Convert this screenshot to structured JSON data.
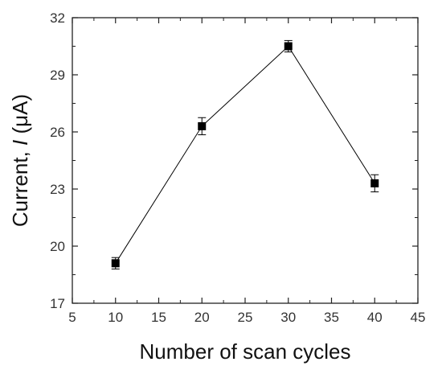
{
  "chart_data": {
    "type": "scatter",
    "title": "",
    "xlabel": "Number of scan cycles",
    "ylabel": {
      "prefix": "Current, ",
      "symbol": "I",
      "suffix": " (μA)"
    },
    "xlim": [
      5,
      45
    ],
    "ylim": [
      17,
      32
    ],
    "xticks": [
      5,
      10,
      15,
      20,
      25,
      30,
      35,
      40,
      45
    ],
    "yticks": [
      17,
      20,
      23,
      26,
      29,
      32
    ],
    "grid": false,
    "legend": "none",
    "connect_points": true,
    "marker": "square",
    "series": [
      {
        "x": [
          10,
          20,
          30,
          40
        ],
        "y": [
          19.1,
          26.3,
          30.5,
          23.3
        ],
        "error": [
          0.3,
          0.45,
          0.3,
          0.45
        ],
        "color": "#000000"
      }
    ]
  }
}
